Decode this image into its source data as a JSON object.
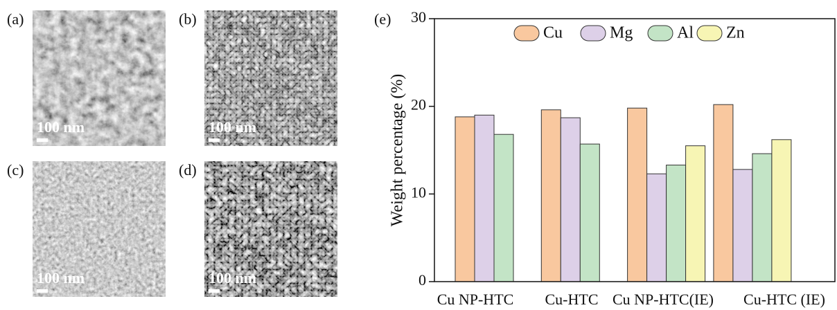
{
  "panels": [
    {
      "label": "(a)",
      "scale_bar": "100 nm"
    },
    {
      "label": "(b)",
      "scale_bar": "100 nm"
    },
    {
      "label": "(c)",
      "scale_bar": "100 nm"
    },
    {
      "label": "(d)",
      "scale_bar": "100 nm"
    }
  ],
  "chart_data": {
    "type": "bar",
    "label": "(e)",
    "y_label": "Weight percentage (%)",
    "categories": [
      "Cu NP-HTC",
      "Cu-HTC",
      "Cu NP-HTC(IE)",
      "Cu-HTC (IE)"
    ],
    "series": [
      {
        "name": "Cu",
        "color": "#f9c89f",
        "values": [
          18.8,
          19.6,
          19.8,
          20.2
        ]
      },
      {
        "name": "Mg",
        "color": "#ddd0e8",
        "values": [
          19.0,
          18.7,
          12.3,
          12.8
        ]
      },
      {
        "name": "Al",
        "color": "#c3e4c6",
        "values": [
          16.8,
          15.7,
          13.3,
          14.6
        ]
      },
      {
        "name": "Zn",
        "color": "#f7f5b4",
        "values": [
          null,
          null,
          15.5,
          16.2
        ]
      }
    ],
    "ylim": [
      0,
      30
    ],
    "yticks": [
      0,
      10,
      20,
      30
    ],
    "legend": "top-right"
  }
}
